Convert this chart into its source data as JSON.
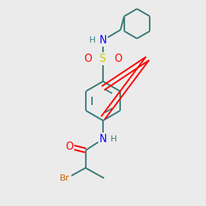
{
  "background_color": "#ebebeb",
  "atom_colors": {
    "C": "#3a7a7a",
    "N": "#0000ff",
    "O": "#ff0000",
    "S": "#cccc00",
    "Br": "#cc6600",
    "H": "#3a7a7a"
  },
  "bond_color": "#3a7a7a",
  "line_width": 1.6,
  "fig_size": [
    3.0,
    3.0
  ],
  "dpi": 100,
  "xlim": [
    0,
    10
  ],
  "ylim": [
    0,
    10
  ]
}
